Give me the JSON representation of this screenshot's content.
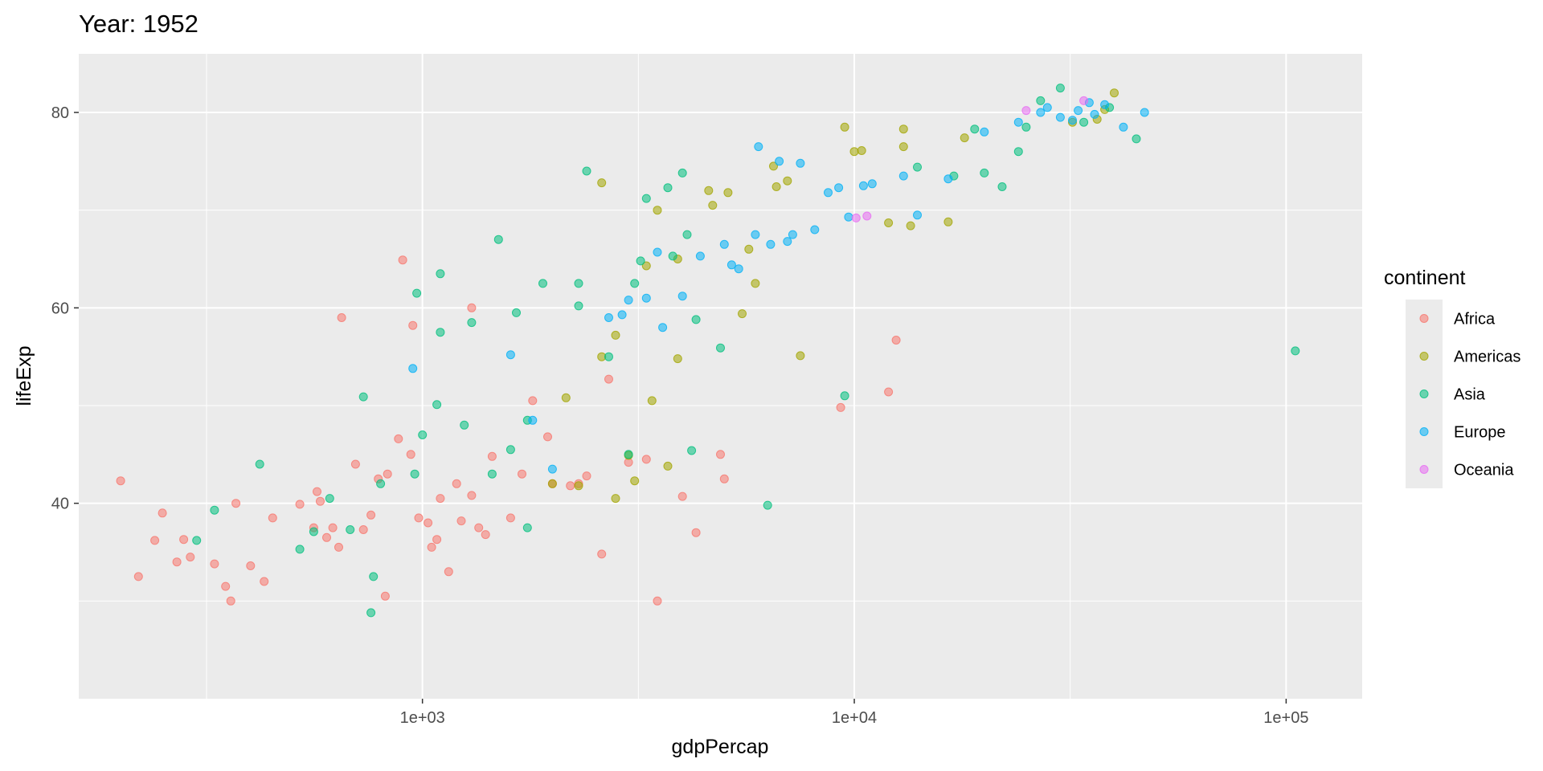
{
  "chart_data": {
    "type": "scatter",
    "title": "Year: 1952",
    "xlabel": "gdpPercap",
    "ylabel": "lifeExp",
    "x_scale": "log10",
    "xlim": [
      160,
      150000
    ],
    "ylim": [
      20,
      86
    ],
    "x_ticks": [
      1000,
      10000,
      100000
    ],
    "x_tick_labels": [
      "1e+03",
      "1e+04",
      "1e+05"
    ],
    "y_ticks": [
      40,
      60,
      80
    ],
    "y_tick_labels": [
      "40",
      "60",
      "80"
    ],
    "grid": true,
    "legend": {
      "title": "continent",
      "position": "right",
      "entries": [
        "Africa",
        "Americas",
        "Asia",
        "Europe",
        "Oceania"
      ]
    },
    "colors": {
      "Africa": "#F8766D",
      "Americas": "#A3A500",
      "Asia": "#00BF7D",
      "Europe": "#00B0F6",
      "Oceania": "#E76BF3",
      "panel_background": "#EBEBEB",
      "grid": "#FFFFFF"
    },
    "series": [
      {
        "name": "Africa",
        "points": [
          [
            200,
            42.3
          ],
          [
            220,
            32.5
          ],
          [
            240,
            36.2
          ],
          [
            250,
            39.0
          ],
          [
            270,
            34.0
          ],
          [
            280,
            36.3
          ],
          [
            290,
            34.5
          ],
          [
            330,
            33.8
          ],
          [
            350,
            31.5
          ],
          [
            360,
            30.0
          ],
          [
            400,
            33.6
          ],
          [
            370,
            40.0
          ],
          [
            430,
            32.0
          ],
          [
            450,
            38.5
          ],
          [
            520,
            39.9
          ],
          [
            560,
            37.5
          ],
          [
            570,
            41.2
          ],
          [
            580,
            40.2
          ],
          [
            600,
            36.5
          ],
          [
            620,
            37.5
          ],
          [
            640,
            35.5
          ],
          [
            700,
            44.0
          ],
          [
            730,
            37.3
          ],
          [
            760,
            38.8
          ],
          [
            820,
            30.5
          ],
          [
            790,
            42.5
          ],
          [
            830,
            43.0
          ],
          [
            880,
            46.6
          ],
          [
            940,
            45.0
          ],
          [
            980,
            38.5
          ],
          [
            1030,
            38.0
          ],
          [
            1050,
            35.5
          ],
          [
            1080,
            36.3
          ],
          [
            1100,
            40.5
          ],
          [
            1150,
            33.0
          ],
          [
            1200,
            42.0
          ],
          [
            1230,
            38.2
          ],
          [
            1300,
            40.8
          ],
          [
            1350,
            37.5
          ],
          [
            1400,
            36.8
          ],
          [
            1450,
            44.8
          ],
          [
            1600,
            38.5
          ],
          [
            1700,
            43.0
          ],
          [
            1800,
            50.5
          ],
          [
            1950,
            46.8
          ],
          [
            2000,
            42.0
          ],
          [
            2200,
            41.8
          ],
          [
            2300,
            42.0
          ],
          [
            2400,
            42.8
          ],
          [
            2600,
            34.8
          ],
          [
            2700,
            52.7
          ],
          [
            3000,
            44.2
          ],
          [
            3300,
            44.5
          ],
          [
            3500,
            30.0
          ],
          [
            4000,
            40.7
          ],
          [
            4300,
            37.0
          ],
          [
            4900,
            45.0
          ],
          [
            5000,
            42.5
          ],
          [
            900,
            64.9
          ],
          [
            950,
            58.2
          ],
          [
            650,
            59.0
          ],
          [
            12500,
            56.7
          ],
          [
            12000,
            51.4
          ],
          [
            9300,
            49.8
          ],
          [
            1300,
            60.0
          ]
        ]
      },
      {
        "name": "Americas",
        "points": [
          [
            2000,
            42.0
          ],
          [
            2150,
            50.8
          ],
          [
            2300,
            41.8
          ],
          [
            2800,
            40.5
          ],
          [
            3000,
            44.9
          ],
          [
            3100,
            42.3
          ],
          [
            3400,
            50.5
          ],
          [
            3700,
            43.8
          ],
          [
            3900,
            54.8
          ],
          [
            2600,
            55.0
          ],
          [
            2800,
            57.2
          ],
          [
            3300,
            64.3
          ],
          [
            3500,
            70.0
          ],
          [
            3900,
            65.0
          ],
          [
            4600,
            72.0
          ],
          [
            5500,
            59.4
          ],
          [
            5700,
            66.0
          ],
          [
            5900,
            62.5
          ],
          [
            7500,
            55.1
          ],
          [
            12000,
            68.7
          ],
          [
            13500,
            68.4
          ],
          [
            2600,
            72.8
          ],
          [
            6500,
            74.5
          ],
          [
            10000,
            76.0
          ],
          [
            10400,
            76.1
          ],
          [
            13000,
            76.5
          ],
          [
            4700,
            70.5
          ],
          [
            5100,
            71.8
          ],
          [
            6600,
            72.4
          ],
          [
            7000,
            73.0
          ],
          [
            9500,
            78.5
          ],
          [
            13000,
            78.3
          ],
          [
            16500,
            68.8
          ],
          [
            18000,
            77.4
          ],
          [
            32000,
            79.0
          ],
          [
            38000,
            80.3
          ],
          [
            36500,
            79.3
          ],
          [
            40000,
            82.0
          ]
        ]
      },
      {
        "name": "Asia",
        "points": [
          [
            300,
            36.2
          ],
          [
            330,
            39.3
          ],
          [
            420,
            44.0
          ],
          [
            520,
            35.3
          ],
          [
            560,
            37.1
          ],
          [
            610,
            40.5
          ],
          [
            680,
            37.3
          ],
          [
            730,
            50.9
          ],
          [
            760,
            28.8
          ],
          [
            770,
            32.5
          ],
          [
            800,
            42.0
          ],
          [
            960,
            43.0
          ],
          [
            1000,
            47.0
          ],
          [
            1080,
            50.1
          ],
          [
            1100,
            57.5
          ],
          [
            1250,
            48.0
          ],
          [
            1300,
            58.5
          ],
          [
            1450,
            43.0
          ],
          [
            1600,
            45.5
          ],
          [
            1750,
            48.5
          ],
          [
            1750,
            37.5
          ],
          [
            1900,
            62.5
          ],
          [
            2300,
            62.5
          ],
          [
            2300,
            60.2
          ],
          [
            3000,
            45.0
          ],
          [
            3200,
            64.8
          ],
          [
            3300,
            71.2
          ],
          [
            3800,
            65.3
          ],
          [
            4100,
            67.5
          ],
          [
            4200,
            45.4
          ],
          [
            4300,
            58.8
          ],
          [
            4900,
            55.9
          ],
          [
            6300,
            39.8
          ],
          [
            2700,
            55.0
          ],
          [
            9500,
            51.0
          ],
          [
            14000,
            74.4
          ],
          [
            17000,
            73.5
          ],
          [
            19000,
            78.3
          ],
          [
            20000,
            73.8
          ],
          [
            22000,
            72.4
          ],
          [
            24000,
            76.0
          ],
          [
            25000,
            78.5
          ],
          [
            27000,
            81.2
          ],
          [
            30000,
            82.5
          ],
          [
            34000,
            79.0
          ],
          [
            39000,
            80.5
          ],
          [
            45000,
            77.3
          ],
          [
            105000,
            55.6
          ],
          [
            3100,
            62.5
          ],
          [
            2400,
            74.0
          ],
          [
            1500,
            67.0
          ],
          [
            970,
            61.5
          ],
          [
            1100,
            63.5
          ],
          [
            1650,
            59.5
          ],
          [
            3700,
            72.3
          ],
          [
            4000,
            73.8
          ]
        ]
      },
      {
        "name": "Europe",
        "points": [
          [
            950,
            53.8
          ],
          [
            1600,
            55.2
          ],
          [
            1800,
            48.5
          ],
          [
            2000,
            43.5
          ],
          [
            2700,
            59.0
          ],
          [
            2900,
            59.3
          ],
          [
            3000,
            60.8
          ],
          [
            3300,
            61.0
          ],
          [
            3500,
            65.7
          ],
          [
            3600,
            58.0
          ],
          [
            4000,
            61.2
          ],
          [
            4400,
            65.3
          ],
          [
            5000,
            66.5
          ],
          [
            5200,
            64.4
          ],
          [
            5400,
            64.0
          ],
          [
            5900,
            67.5
          ],
          [
            6400,
            66.5
          ],
          [
            7000,
            66.8
          ],
          [
            7200,
            67.5
          ],
          [
            8100,
            68.0
          ],
          [
            8700,
            71.8
          ],
          [
            9200,
            72.3
          ],
          [
            9700,
            69.3
          ],
          [
            10500,
            72.5
          ],
          [
            11000,
            72.7
          ],
          [
            13000,
            73.5
          ],
          [
            14000,
            69.5
          ],
          [
            16500,
            73.2
          ],
          [
            20000,
            78.0
          ],
          [
            24000,
            79.0
          ],
          [
            27000,
            80.0
          ],
          [
            28000,
            80.5
          ],
          [
            30000,
            79.5
          ],
          [
            32000,
            79.2
          ],
          [
            33000,
            80.2
          ],
          [
            35000,
            81.0
          ],
          [
            36000,
            79.8
          ],
          [
            38000,
            80.8
          ],
          [
            42000,
            78.5
          ],
          [
            47000,
            80.0
          ],
          [
            6700,
            75.0
          ],
          [
            6000,
            76.5
          ],
          [
            7500,
            74.8
          ]
        ]
      },
      {
        "name": "Oceania",
        "points": [
          [
            10100,
            69.2
          ],
          [
            10700,
            69.4
          ],
          [
            25000,
            80.2
          ],
          [
            34000,
            81.2
          ]
        ]
      }
    ]
  }
}
